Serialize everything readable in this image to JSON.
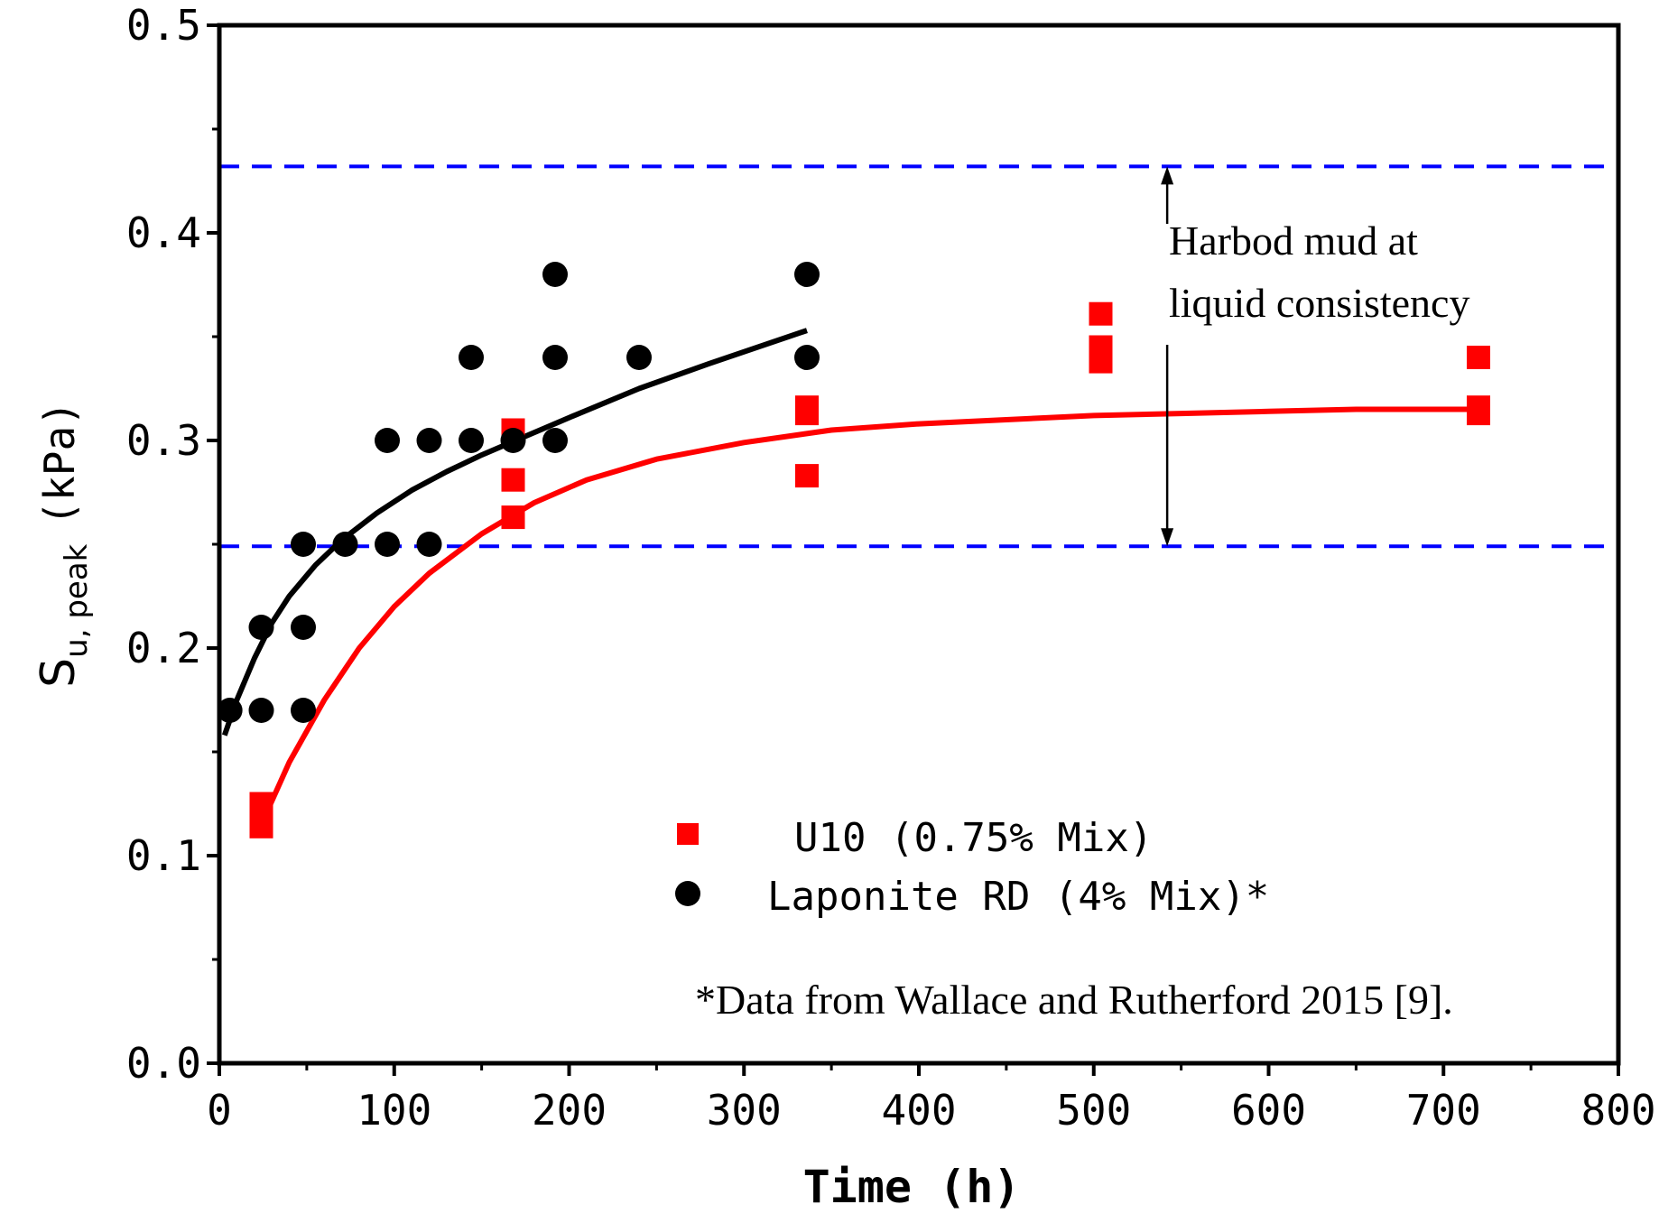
{
  "chart_data": {
    "type": "scatter",
    "title": "",
    "xlabel": "Time (h)",
    "ylabel": {
      "main": "S",
      "subscript": "u, peak",
      "unit": "(kPa)"
    },
    "xlim": [
      0,
      800
    ],
    "ylim": [
      0.0,
      0.5
    ],
    "x_ticks": [
      0,
      100,
      200,
      300,
      400,
      500,
      600,
      700,
      800
    ],
    "x_tick_labels": [
      "0",
      "100",
      "200",
      "300",
      "400",
      "500",
      "600",
      "700",
      "800"
    ],
    "y_ticks": [
      0.0,
      0.1,
      0.2,
      0.3,
      0.4,
      0.5
    ],
    "y_tick_labels": [
      "0.0",
      "0.1",
      "0.2",
      "0.3",
      "0.4",
      "0.5"
    ],
    "grid": false,
    "series": [
      {
        "name": "U10 (0.75% Mix)",
        "marker": "square",
        "color": "#ff0000",
        "points": [
          [
            24,
            0.125
          ],
          [
            24,
            0.114
          ],
          [
            168,
            0.305
          ],
          [
            168,
            0.281
          ],
          [
            168,
            0.263
          ],
          [
            336,
            0.316
          ],
          [
            336,
            0.313
          ],
          [
            336,
            0.283
          ],
          [
            504,
            0.361
          ],
          [
            504,
            0.345
          ],
          [
            504,
            0.338
          ],
          [
            720,
            0.34
          ],
          [
            720,
            0.316
          ],
          [
            720,
            0.313
          ]
        ]
      },
      {
        "name": "Laponite RD (4% Mix)*",
        "marker": "circle",
        "color": "#000000",
        "points": [
          [
            6,
            0.17
          ],
          [
            24,
            0.17
          ],
          [
            24,
            0.21
          ],
          [
            48,
            0.17
          ],
          [
            48,
            0.21
          ],
          [
            48,
            0.25
          ],
          [
            72,
            0.25
          ],
          [
            96,
            0.25
          ],
          [
            96,
            0.3
          ],
          [
            120,
            0.25
          ],
          [
            120,
            0.3
          ],
          [
            144,
            0.3
          ],
          [
            144,
            0.34
          ],
          [
            168,
            0.3
          ],
          [
            192,
            0.3
          ],
          [
            192,
            0.34
          ],
          [
            192,
            0.38
          ],
          [
            240,
            0.34
          ],
          [
            336,
            0.34
          ],
          [
            336,
            0.38
          ]
        ]
      }
    ],
    "fit_curves": [
      {
        "series": "U10 (0.75% Mix)",
        "color": "#ff0000",
        "x": [
          24,
          40,
          60,
          80,
          100,
          120,
          150,
          180,
          210,
          250,
          300,
          350,
          400,
          450,
          500,
          550,
          600,
          650,
          720
        ],
        "y": [
          0.115,
          0.145,
          0.175,
          0.2,
          0.22,
          0.236,
          0.255,
          0.27,
          0.281,
          0.291,
          0.299,
          0.305,
          0.308,
          0.31,
          0.312,
          0.313,
          0.314,
          0.315,
          0.315
        ]
      },
      {
        "series": "Laponite RD (4% Mix)*",
        "color": "#000000",
        "x": [
          3,
          10,
          20,
          30,
          40,
          55,
          70,
          90,
          110,
          130,
          150,
          175,
          200,
          240,
          280,
          336
        ],
        "y": [
          0.158,
          0.175,
          0.195,
          0.212,
          0.225,
          0.24,
          0.252,
          0.265,
          0.276,
          0.285,
          0.293,
          0.302,
          0.311,
          0.325,
          0.337,
          0.353
        ]
      }
    ],
    "reference_lines": [
      {
        "y": 0.432,
        "color": "#0000ff",
        "style": "dashed"
      },
      {
        "y": 0.249,
        "color": "#0000ff",
        "style": "dashed"
      }
    ],
    "annotation": {
      "lines": [
        "Harbod mud at",
        "liquid consistency"
      ],
      "arrow_x": 542,
      "arrow_from": 0.432,
      "arrow_to": 0.249
    },
    "legend": {
      "position": "bottom-center",
      "entries": [
        "U10 (0.75% Mix)",
        "Laponite RD (4% Mix)*"
      ]
    },
    "footnote": "*Data from Wallace and Rutherford 2015 [9]."
  }
}
